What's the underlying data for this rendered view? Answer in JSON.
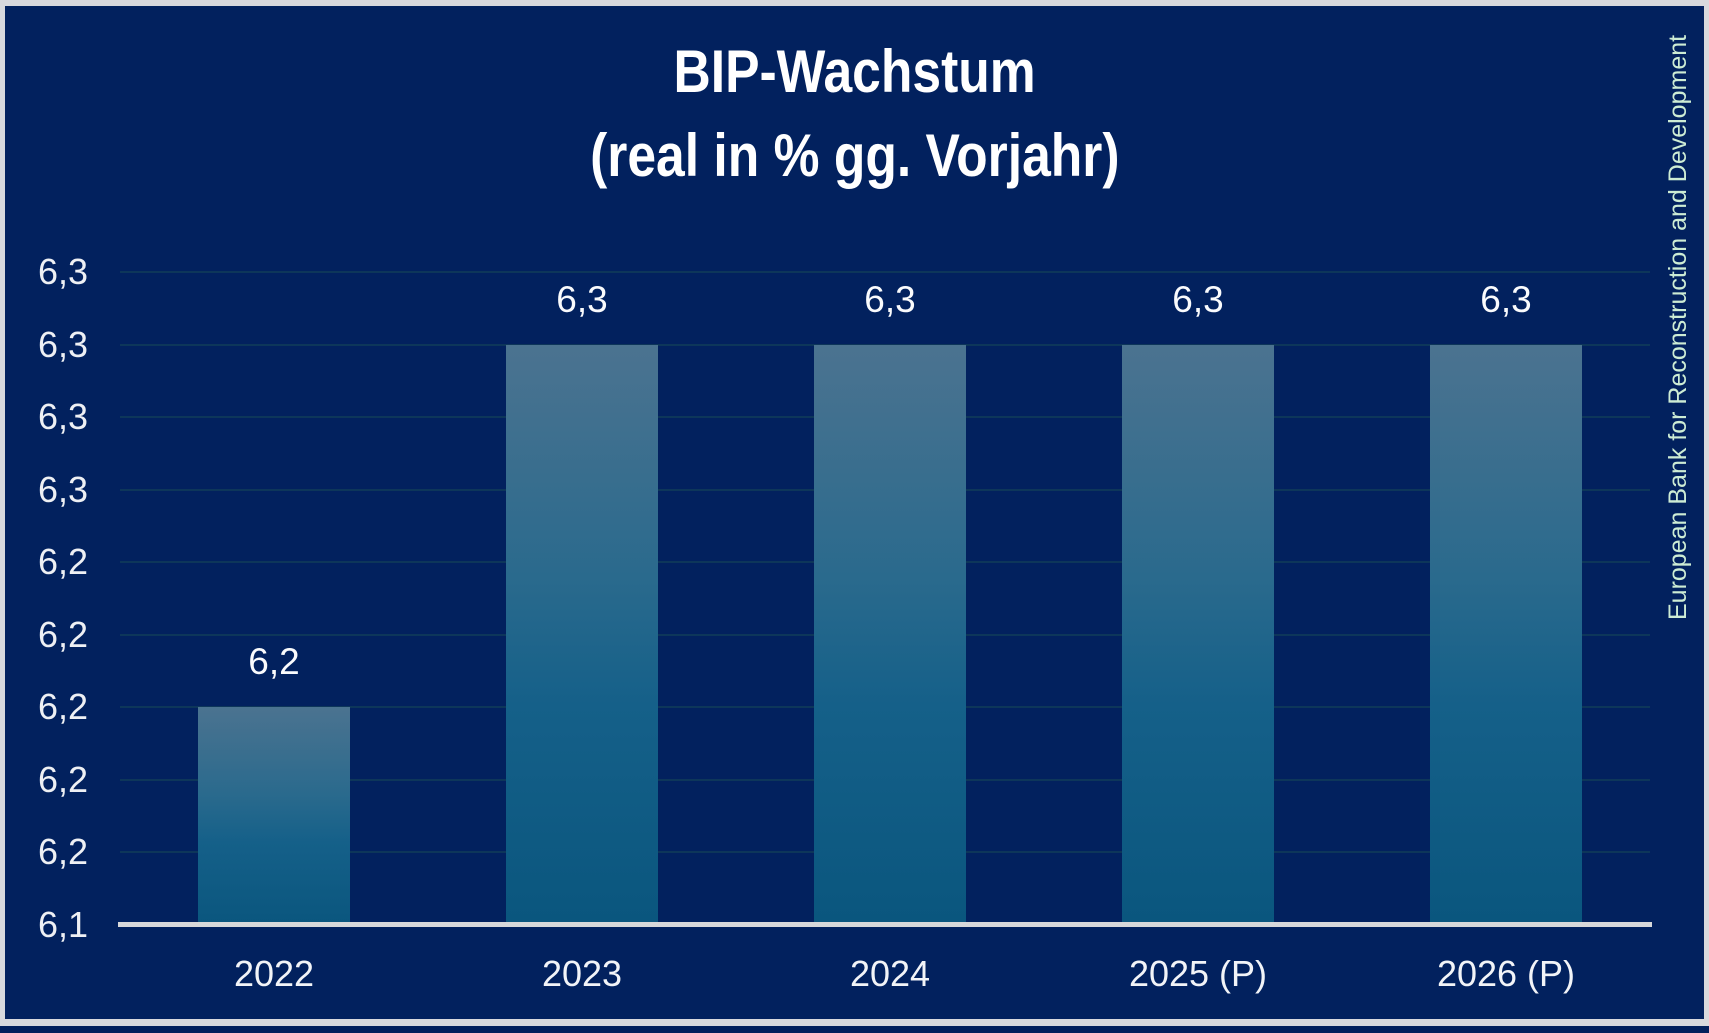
{
  "title": {
    "line1": "BIP-Wachstum",
    "line2": "(real in % gg. Vorjahr)"
  },
  "watermark": "European Bank for Reconstruction and Development",
  "chart_data": {
    "type": "bar",
    "title": "BIP-Wachstum",
    "subtitle": "(real in % gg. Vorjahr)",
    "categories": [
      "2022",
      "2023",
      "2024",
      "2025 (P)",
      "2026 (P)"
    ],
    "values": [
      6.2,
      6.3,
      6.3,
      6.3,
      6.3
    ],
    "bar_labels": [
      "6,2",
      "6,3",
      "6,3",
      "6,3",
      "6,3"
    ],
    "xlabel": "",
    "ylabel": "",
    "ylim": [
      6.14,
      6.32
    ],
    "yticks": [
      {
        "value": 6.32,
        "label": "6,3"
      },
      {
        "value": 6.3,
        "label": "6,3"
      },
      {
        "value": 6.28,
        "label": "6,3"
      },
      {
        "value": 6.26,
        "label": "6,3"
      },
      {
        "value": 6.24,
        "label": "6,2"
      },
      {
        "value": 6.22,
        "label": "6,2"
      },
      {
        "value": 6.2,
        "label": "6,2"
      },
      {
        "value": 6.18,
        "label": "6,2"
      },
      {
        "value": 6.16,
        "label": "6,2"
      },
      {
        "value": 6.14,
        "label": "6,1"
      }
    ],
    "grid": true,
    "legend": false,
    "number_format": "de-comma",
    "source_label": "European Bank for Reconstruction and Development"
  },
  "colors": {
    "background": "#02215e",
    "frame": "#d8d9dd",
    "bar_gradient_top": "#4b7390",
    "bar_gradient_bottom": "#0a567e",
    "gridline": "#0f3a59",
    "axis_line": "#d7d8da",
    "title_text": "#ffffff",
    "label_text": "#eef0f4",
    "watermark_text": "#cdecd4"
  }
}
